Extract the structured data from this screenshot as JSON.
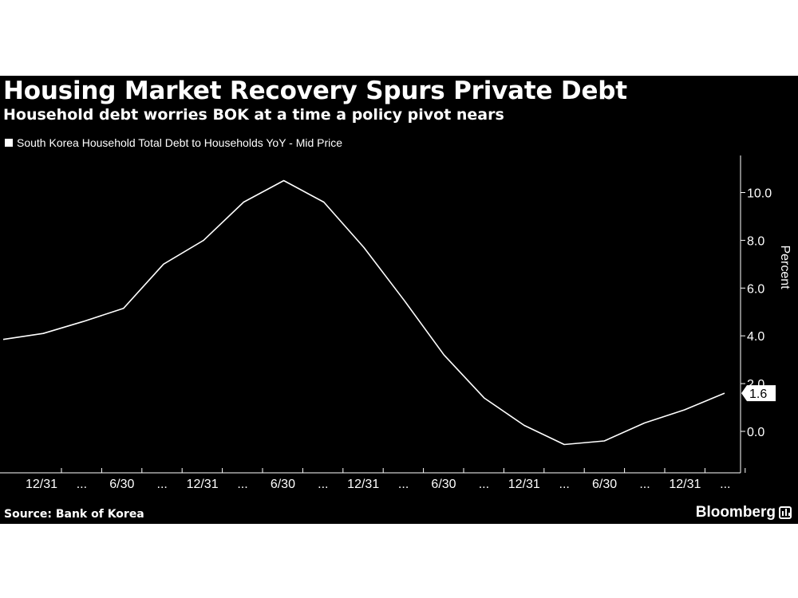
{
  "header": {
    "title": "Housing Market Recovery Spurs Private Debt",
    "subtitle": "Household debt worries BOK at a time a policy pivot nears"
  },
  "legend": {
    "label": "South Korea Household Total Debt to Households YoY - Mid Price"
  },
  "footer": {
    "source": "Source: Bank of Korea",
    "brand": "Bloomberg"
  },
  "colors": {
    "background": "#000000",
    "line": "#ffffff",
    "text": "#ffffff"
  },
  "chart_data": {
    "type": "line",
    "title": "Housing Market Recovery Spurs Private Debt",
    "subtitle": "Household debt worries BOK at a time a policy pivot nears",
    "ylabel": "Percent",
    "ylim": [
      -1.6,
      11.4
    ],
    "yticks": [
      "0.0",
      "2.0",
      "4.0",
      "6.0",
      "8.0",
      "10.0"
    ],
    "ytick_values": [
      0,
      2,
      4,
      6,
      8,
      10
    ],
    "xtick_labels": [
      "12/31",
      "...",
      "6/30",
      "...",
      "12/31",
      "...",
      "6/30",
      "...",
      "12/31",
      "...",
      "6/30",
      "...",
      "12/31",
      "...",
      "6/30",
      "...",
      "12/31",
      "..."
    ],
    "grid": false,
    "legend_position": "top-left",
    "last_value_label": "1.6",
    "series": [
      {
        "name": "South Korea Household Total Debt to Households YoY - Mid Price",
        "values": [
          3.85,
          4.1,
          4.6,
          5.15,
          7.0,
          8.0,
          9.6,
          10.5,
          9.6,
          7.7,
          5.5,
          3.2,
          1.4,
          0.25,
          -0.55,
          -0.4,
          0.35,
          0.9,
          1.6
        ]
      }
    ]
  }
}
